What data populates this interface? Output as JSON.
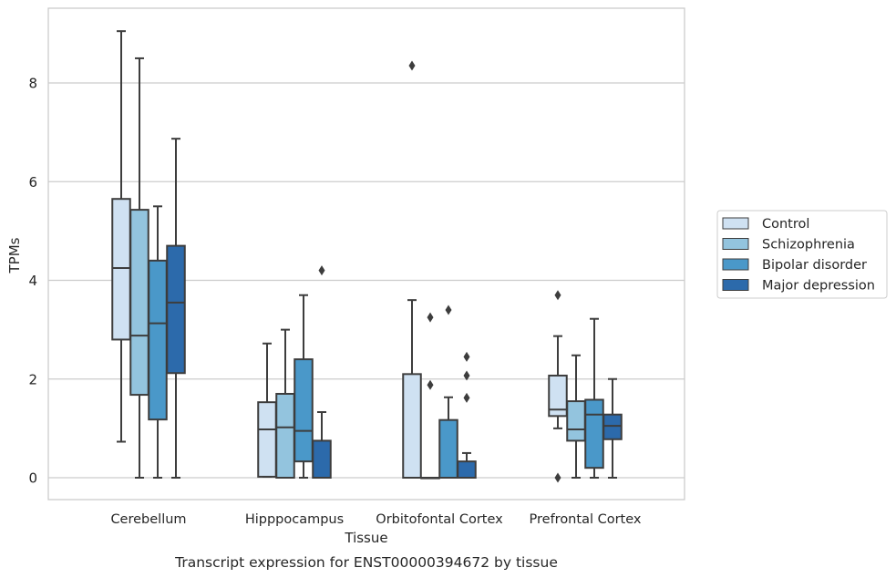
{
  "chart_data": {
    "type": "box",
    "ylabel": "TPMs",
    "xlabel": "Tissue",
    "caption": "Transcript expression for ENST00000394672 by tissue",
    "ylim": [
      -0.45,
      9.6
    ],
    "yticks": [
      0,
      2,
      4,
      6,
      8
    ],
    "grid": "horizontal",
    "legend_position": "right",
    "categories": [
      "Cerebellum",
      "Hipppocampus",
      "Orbitofontal Cortex",
      "Prefrontal Cortex"
    ],
    "series": [
      {
        "name": "Control",
        "color": "#cfe1f2",
        "boxes": [
          {
            "whislo": 0.73,
            "q1": 2.8,
            "med": 4.25,
            "q3": 5.65,
            "whishi": 9.05,
            "fliers": []
          },
          {
            "whislo": 0.02,
            "q1": 0.02,
            "med": 0.98,
            "q3": 1.53,
            "whishi": 2.72,
            "fliers": []
          },
          {
            "whislo": 0.0,
            "q1": 0.0,
            "med": 0.0,
            "q3": 2.1,
            "whishi": 3.6,
            "fliers": [
              8.35
            ]
          },
          {
            "whislo": 1.0,
            "q1": 1.25,
            "med": 1.38,
            "q3": 2.07,
            "whishi": 2.87,
            "fliers": [
              3.7,
              0.0
            ]
          }
        ]
      },
      {
        "name": "Schizophrenia",
        "color": "#93c4de",
        "boxes": [
          {
            "whislo": 0.0,
            "q1": 1.68,
            "med": 2.88,
            "q3": 5.43,
            "whishi": 8.5,
            "fliers": []
          },
          {
            "whislo": 0.0,
            "q1": 0.0,
            "med": 1.02,
            "q3": 1.7,
            "whishi": 3.0,
            "fliers": []
          },
          {
            "whislo": 0.0,
            "q1": 0.0,
            "med": 0.0,
            "q3": 0.0,
            "whishi": 0.0,
            "fliers": [
              3.25,
              1.88
            ]
          },
          {
            "whislo": 0.0,
            "q1": 0.75,
            "med": 0.98,
            "q3": 1.55,
            "whishi": 2.48,
            "fliers": []
          }
        ]
      },
      {
        "name": "Bipolar disorder",
        "color": "#4a98c9",
        "boxes": [
          {
            "whislo": 0.0,
            "q1": 1.18,
            "med": 3.13,
            "q3": 4.4,
            "whishi": 5.5,
            "fliers": []
          },
          {
            "whislo": 0.0,
            "q1": 0.33,
            "med": 0.95,
            "q3": 2.4,
            "whishi": 3.7,
            "fliers": []
          },
          {
            "whislo": 0.0,
            "q1": 0.0,
            "med": 0.0,
            "q3": 1.17,
            "whishi": 1.63,
            "fliers": [
              3.4
            ]
          },
          {
            "whislo": 0.0,
            "q1": 0.2,
            "med": 1.28,
            "q3": 1.58,
            "whishi": 3.22,
            "fliers": []
          }
        ]
      },
      {
        "name": "Major depression",
        "color": "#2c6aab",
        "boxes": [
          {
            "whislo": 0.0,
            "q1": 2.12,
            "med": 3.55,
            "q3": 4.7,
            "whishi": 6.87,
            "fliers": []
          },
          {
            "whislo": 0.0,
            "q1": 0.0,
            "med": 0.0,
            "q3": 0.75,
            "whishi": 1.33,
            "fliers": [
              4.2
            ]
          },
          {
            "whislo": 0.0,
            "q1": 0.0,
            "med": 0.0,
            "q3": 0.33,
            "whishi": 0.5,
            "fliers": [
              2.45,
              2.07,
              1.62
            ]
          },
          {
            "whislo": 0.0,
            "q1": 0.78,
            "med": 1.05,
            "q3": 1.28,
            "whishi": 2.0,
            "fliers": []
          }
        ]
      }
    ]
  }
}
